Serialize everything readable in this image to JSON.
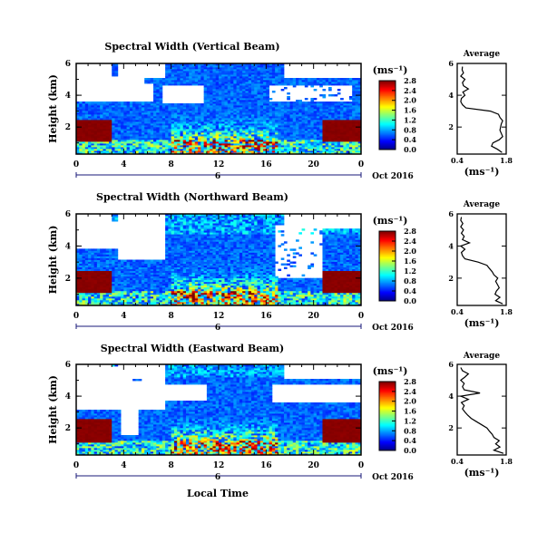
{
  "chart_data": [
    {
      "type": "heatmap",
      "title": "Spectral Width (Vertical Beam)",
      "ylabel": "Height (km)",
      "yticks": [
        "2",
        "4",
        "6"
      ],
      "ylim": [
        0.3,
        6.0
      ],
      "xticks": [
        "0",
        "4",
        "8",
        "12",
        "16",
        "20",
        "0"
      ],
      "xlim": [
        0,
        24
      ],
      "day_label": "6",
      "date_label": "Oct 2016",
      "colorbar": {
        "label": "(ms⁻¹)",
        "ticks": [
          "0.0",
          "0.4",
          "0.8",
          "1.2",
          "1.6",
          "2.0",
          "2.4",
          "2.8"
        ],
        "range": [
          0.0,
          2.8
        ]
      },
      "average_profile": {
        "title": "Average",
        "xlabel": "(ms⁻¹)",
        "xticks": [
          "0.4",
          "1.8"
        ],
        "xlim": [
          0.4,
          1.8
        ],
        "yticks": [
          "2",
          "4",
          "6"
        ],
        "ylim": [
          0.3,
          6.0
        ],
        "height": [
          0.4,
          0.6,
          0.8,
          1.0,
          1.2,
          1.4,
          1.6,
          1.8,
          2.0,
          2.2,
          2.4,
          2.6,
          2.8,
          3.0,
          3.2,
          3.4,
          3.6,
          3.8,
          4.0,
          4.2,
          4.4,
          4.6,
          4.8,
          5.0,
          5.2,
          5.4,
          5.6,
          5.8
        ],
        "width": [
          1.68,
          1.55,
          1.38,
          1.42,
          1.6,
          1.7,
          1.66,
          1.62,
          1.64,
          1.66,
          1.7,
          1.62,
          1.58,
          1.35,
          0.65,
          0.55,
          0.5,
          0.52,
          0.62,
          0.56,
          0.72,
          0.58,
          0.55,
          0.62,
          0.5,
          0.58,
          0.54,
          0.55
        ]
      }
    },
    {
      "type": "heatmap",
      "title": "Spectral Width (Northward Beam)",
      "ylabel": "Height (km)",
      "yticks": [
        "2",
        "4",
        "6"
      ],
      "ylim": [
        0.3,
        6.0
      ],
      "xticks": [
        "0",
        "4",
        "8",
        "12",
        "16",
        "20",
        "0"
      ],
      "xlim": [
        0,
        24
      ],
      "day_label": "6",
      "date_label": "Oct 2016",
      "colorbar": {
        "label": "(ms⁻¹)",
        "ticks": [
          "0.0",
          "0.4",
          "0.8",
          "1.2",
          "1.6",
          "2.0",
          "2.4",
          "2.8"
        ],
        "range": [
          0.0,
          2.8
        ]
      },
      "average_profile": {
        "title": "Average",
        "xlabel": "(ms⁻¹)",
        "xticks": [
          "0.4",
          "1.8"
        ],
        "xlim": [
          0.4,
          1.8
        ],
        "yticks": [
          "2",
          "4",
          "6"
        ],
        "ylim": [
          0.3,
          6.0
        ],
        "height": [
          0.4,
          0.6,
          0.8,
          1.0,
          1.2,
          1.4,
          1.6,
          1.8,
          2.0,
          2.2,
          2.4,
          2.6,
          2.8,
          3.0,
          3.2,
          3.4,
          3.6,
          3.8,
          4.0,
          4.2,
          4.4,
          4.6,
          4.8,
          5.0,
          5.2,
          5.4,
          5.6,
          5.8
        ],
        "width": [
          1.7,
          1.5,
          1.62,
          1.48,
          1.52,
          1.6,
          1.55,
          1.5,
          1.56,
          1.45,
          1.4,
          1.32,
          1.25,
          1.0,
          0.62,
          0.55,
          0.52,
          0.62,
          0.5,
          0.75,
          0.55,
          0.6,
          0.52,
          0.58,
          0.5,
          0.56,
          0.5,
          0.52
        ]
      }
    },
    {
      "type": "heatmap",
      "title": "Spectral Width (Eastward Beam)",
      "ylabel": "Height (km)",
      "yticks": [
        "2",
        "4",
        "6"
      ],
      "ylim": [
        0.3,
        6.0
      ],
      "xticks": [
        "0",
        "4",
        "8",
        "12",
        "16",
        "20",
        "0"
      ],
      "xlim": [
        0,
        24
      ],
      "day_label": "6",
      "date_label": "Oct 2016",
      "xlabel": "Local Time",
      "colorbar": {
        "label": "(ms⁻¹)",
        "ticks": [
          "0.0",
          "0.4",
          "0.8",
          "1.2",
          "1.6",
          "2.0",
          "2.4",
          "2.8"
        ],
        "range": [
          0.0,
          2.8
        ]
      },
      "average_profile": {
        "title": "Average",
        "xlabel": "(ms⁻¹)",
        "xticks": [
          "0.4",
          "1.8"
        ],
        "xlim": [
          0.4,
          1.8
        ],
        "yticks": [
          "2",
          "4",
          "6"
        ],
        "ylim": [
          0.3,
          6.0
        ],
        "height": [
          0.4,
          0.6,
          0.8,
          1.0,
          1.2,
          1.4,
          1.6,
          1.8,
          2.0,
          2.2,
          2.4,
          2.6,
          2.8,
          3.0,
          3.2,
          3.4,
          3.6,
          3.8,
          4.0,
          4.2,
          4.4,
          4.6,
          4.8,
          5.0,
          5.2,
          5.4,
          5.6,
          5.8
        ],
        "width": [
          1.72,
          1.45,
          1.62,
          1.5,
          1.6,
          1.45,
          1.4,
          1.32,
          1.25,
          1.1,
          0.95,
          0.8,
          0.7,
          0.62,
          0.55,
          0.6,
          0.52,
          0.72,
          0.5,
          1.05,
          0.6,
          0.55,
          0.6,
          0.5,
          0.62,
          0.72,
          0.55,
          0.5
        ]
      }
    }
  ]
}
